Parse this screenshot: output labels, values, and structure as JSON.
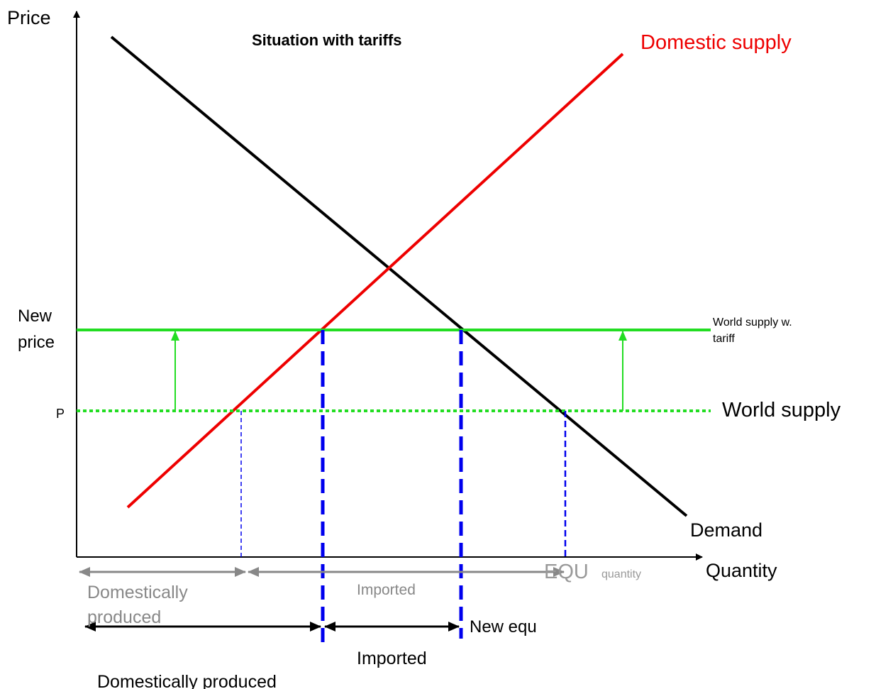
{
  "axes": {
    "y_label": "Price",
    "x_label": "Quantity"
  },
  "title": "Situation with tariffs",
  "curves": {
    "domestic_supply": "Domestic supply",
    "demand": "Demand"
  },
  "levels": {
    "new_price": [
      "New",
      "price"
    ],
    "p": "P",
    "world_supply_tariff": [
      "World supply w.",
      "tariff"
    ],
    "world_supply": "World supply"
  },
  "free_trade": {
    "equ": "EQU",
    "equ_sub": "quantity",
    "domestically_produced": [
      "Domestically",
      "produced"
    ],
    "imported": "Imported"
  },
  "with_tariff": {
    "new_equ": "New equ",
    "domestically_produced": "Domestically produced",
    "imported": "Imported"
  }
}
